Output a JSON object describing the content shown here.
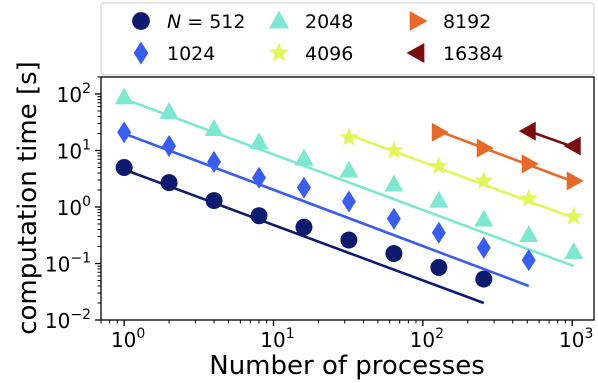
{
  "chart_data": {
    "type": "scatter",
    "xlabel": "Number of processes",
    "ylabel": "computation time [s]",
    "xscale": "log",
    "yscale": "log",
    "xlim": [
      0.7,
      1400
    ],
    "ylim": [
      0.01,
      200
    ],
    "grid": false,
    "legend_position": "top",
    "x_ticks": [
      {
        "value": 1,
        "base": "10",
        "exp": "0"
      },
      {
        "value": 10,
        "base": "10",
        "exp": "1"
      },
      {
        "value": 100,
        "base": "10",
        "exp": "2"
      },
      {
        "value": 1000,
        "base": "10",
        "exp": "3"
      }
    ],
    "y_ticks": [
      {
        "value": 0.01,
        "base": "10",
        "exp": "−2"
      },
      {
        "value": 0.1,
        "base": "10",
        "exp": "−1"
      },
      {
        "value": 1,
        "base": "10",
        "exp": "0"
      },
      {
        "value": 10,
        "base": "10",
        "exp": "1"
      },
      {
        "value": 100,
        "base": "10",
        "exp": "2"
      }
    ],
    "series": [
      {
        "name": "N = 512",
        "marker": "circle",
        "color": "#0d1b6e",
        "points": [
          [
            1,
            5.0
          ],
          [
            2,
            2.7
          ],
          [
            4,
            1.3
          ],
          [
            8,
            0.7
          ],
          [
            16,
            0.44
          ],
          [
            32,
            0.26
          ],
          [
            64,
            0.15
          ],
          [
            128,
            0.085
          ],
          [
            256,
            0.053
          ]
        ],
        "fit_line": [
          [
            1,
            4.6
          ],
          [
            256,
            0.02
          ]
        ]
      },
      {
        "name": "1024",
        "marker": "diamond",
        "color": "#3a5df0",
        "points": [
          [
            1,
            21
          ],
          [
            2,
            12
          ],
          [
            4,
            6.3
          ],
          [
            8,
            3.3
          ],
          [
            16,
            2.2
          ],
          [
            32,
            1.25
          ],
          [
            64,
            0.62
          ],
          [
            128,
            0.35
          ],
          [
            256,
            0.19
          ],
          [
            512,
            0.115
          ]
        ],
        "fit_line": [
          [
            1,
            20
          ],
          [
            512,
            0.04
          ]
        ]
      },
      {
        "name": "2048",
        "marker": "triangle-up",
        "color": "#7de8cf",
        "points": [
          [
            1,
            87
          ],
          [
            2,
            48
          ],
          [
            4,
            24
          ],
          [
            8,
            14
          ],
          [
            16,
            7.2
          ],
          [
            32,
            4.4
          ],
          [
            64,
            2.5
          ],
          [
            128,
            1.3
          ],
          [
            256,
            0.6
          ],
          [
            512,
            0.32
          ],
          [
            1024,
            0.16
          ]
        ],
        "fit_line": [
          [
            1,
            82
          ],
          [
            1024,
            0.09
          ]
        ]
      },
      {
        "name": "4096",
        "marker": "star",
        "color": "#e2f55a",
        "points": [
          [
            32,
            17
          ],
          [
            64,
            10
          ],
          [
            128,
            5.3
          ],
          [
            256,
            2.9
          ],
          [
            512,
            1.4
          ],
          [
            1024,
            0.68
          ]
        ],
        "fit_line": [
          [
            32,
            19
          ],
          [
            1024,
            0.64
          ]
        ]
      },
      {
        "name": "8192",
        "marker": "triangle-right",
        "color": "#e8682a",
        "points": [
          [
            128,
            21
          ],
          [
            256,
            11
          ],
          [
            512,
            5.8
          ],
          [
            1024,
            2.9
          ]
        ],
        "fit_line": [
          [
            128,
            22
          ],
          [
            1024,
            2.8
          ]
        ]
      },
      {
        "name": "16384",
        "marker": "triangle-left",
        "color": "#7a0d0d",
        "points": [
          [
            512,
            22
          ],
          [
            1024,
            12
          ]
        ],
        "fit_line": [
          [
            512,
            22
          ],
          [
            1024,
            11.5
          ]
        ]
      }
    ]
  }
}
